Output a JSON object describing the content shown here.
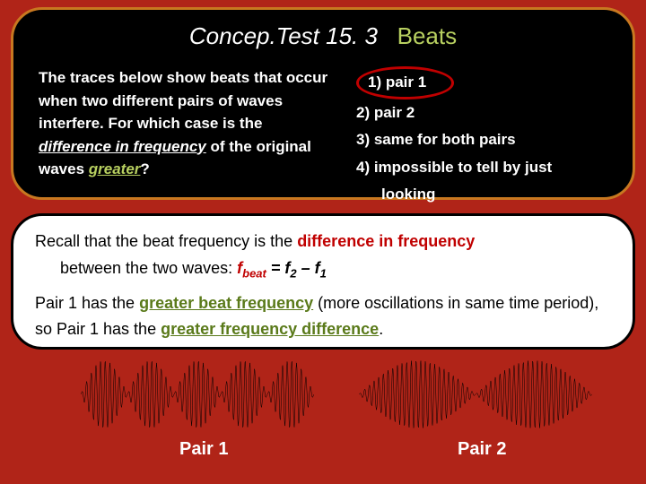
{
  "title_prefix": "Concep.Test 15. 3",
  "title_beats": "Beats",
  "question_part1": "The traces below show beats that occur when two different pairs of waves interfere.  For which case is the ",
  "question_diff": "difference in frequency",
  "question_part2": " of the original waves ",
  "question_greater": "greater",
  "question_part3": "?",
  "options": {
    "o1": "1) pair 1",
    "o2": "2) pair 2",
    "o3": "3) same for both pairs",
    "o4a": "4) impossible to tell by just",
    "o4b": "looking"
  },
  "explain": {
    "p1a": "Recall that the beat frequency is the ",
    "p1b": "difference in frequency",
    "p1c": " between the two waves:   ",
    "fbeat": "f",
    "fbeat_sub": "beat",
    "eq": "  =  f",
    "eq2": " – f",
    "p2a": "Pair 1 has the ",
    "p2b": "greater beat frequency",
    "p2c": " (more oscillations in same time period), so Pair 1 has the ",
    "p2d": "greater frequency difference",
    "p2e": "."
  },
  "pair1_label": "Pair 1",
  "pair2_label": "Pair 2",
  "waves": {
    "pair1_beats": 5,
    "pair2_beats": 2,
    "carrier_cycles": 50,
    "stroke": "#000000",
    "stroke_width": 0.5
  }
}
